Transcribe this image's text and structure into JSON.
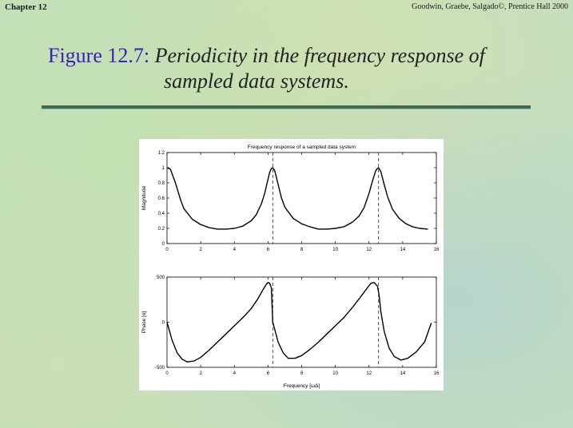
{
  "header": {
    "chapter": "Chapter 12",
    "credit": "Goodwin, Graebe, Salgado©, Prentice Hall 2000"
  },
  "title": {
    "label": "Figure 12.7:",
    "caption_line1": "Periodicity in the frequency response of",
    "caption_line2": "sampled data systems."
  },
  "colors": {
    "title_label": "#3a1fb8",
    "rule": "#3f6b55",
    "curve": "#000000"
  },
  "chart_data": [
    {
      "type": "line",
      "title": "Frequency response of a sampled data system",
      "xlabel": "",
      "ylabel": "Magnitude",
      "xlim": [
        0,
        16
      ],
      "ylim": [
        0,
        1.2
      ],
      "xticks": [
        0,
        2,
        4,
        6,
        8,
        10,
        12,
        14,
        16
      ],
      "yticks": [
        0,
        0.2,
        0.4,
        0.6,
        0.8,
        1,
        1.2
      ],
      "ytick_labels": [
        "0",
        "0.2",
        "0.4",
        "0.6",
        "0.8",
        "1",
        "1.2"
      ],
      "vlines": [
        6.28,
        12.57
      ],
      "series": [
        {
          "x": [
            0,
            0.2,
            0.5,
            0.8,
            1.0,
            1.5,
            2.0,
            2.5,
            3.0,
            3.5,
            4.0,
            4.5,
            5.0,
            5.3,
            5.6,
            5.8,
            6.0,
            6.1,
            6.2,
            6.28,
            6.4,
            6.6,
            6.8,
            7.0,
            7.5,
            8.0,
            8.5,
            9.0,
            9.5,
            10.0,
            10.5,
            11.0,
            11.4,
            11.7,
            12.0,
            12.2,
            12.4,
            12.5,
            12.57,
            12.7,
            12.9,
            13.1,
            13.4,
            13.8,
            14.2,
            14.6,
            15.0,
            15.5
          ],
          "y": [
            1.0,
            0.98,
            0.8,
            0.58,
            0.46,
            0.32,
            0.25,
            0.21,
            0.19,
            0.19,
            0.2,
            0.23,
            0.3,
            0.38,
            0.52,
            0.66,
            0.85,
            0.94,
            0.99,
            1.0,
            0.96,
            0.78,
            0.6,
            0.48,
            0.33,
            0.26,
            0.22,
            0.19,
            0.19,
            0.2,
            0.22,
            0.28,
            0.36,
            0.47,
            0.66,
            0.82,
            0.96,
            0.99,
            1.0,
            0.95,
            0.78,
            0.62,
            0.45,
            0.33,
            0.26,
            0.22,
            0.2,
            0.19
          ]
        }
      ]
    },
    {
      "type": "line",
      "title": "",
      "xlabel": "Frequency [ωΔ]",
      "ylabel": "Phase [o]",
      "xlim": [
        0,
        16
      ],
      "ylim": [
        -500,
        500
      ],
      "xticks": [
        0,
        2,
        4,
        6,
        8,
        10,
        12,
        14,
        16
      ],
      "yticks": [
        -500,
        0,
        500
      ],
      "ytick_labels": [
        "−500",
        "0",
        "500"
      ],
      "vlines": [
        6.28,
        12.57
      ],
      "series": [
        {
          "x": [
            0,
            0.3,
            0.6,
            0.9,
            1.2,
            1.6,
            2.0,
            2.5,
            3.0,
            3.5,
            4.0,
            4.5,
            5.0,
            5.4,
            5.7,
            5.9,
            6.0,
            6.1,
            6.2,
            6.28,
            6.4,
            6.6,
            6.9,
            7.2,
            7.6,
            8.0,
            8.5,
            9.0,
            9.5,
            10.0,
            10.5,
            11.0,
            11.5,
            11.9,
            12.1,
            12.3,
            12.5,
            12.6,
            12.7,
            12.9,
            13.2,
            13.5,
            13.9,
            14.3,
            14.8,
            15.3,
            15.7
          ],
          "y": [
            0,
            -200,
            -340,
            -410,
            -440,
            -430,
            -390,
            -310,
            -220,
            -130,
            -40,
            50,
            150,
            260,
            360,
            420,
            440,
            430,
            380,
            0,
            -80,
            -220,
            -340,
            -400,
            -400,
            -370,
            -300,
            -220,
            -130,
            -40,
            50,
            160,
            280,
            380,
            430,
            440,
            400,
            300,
            120,
            -100,
            -290,
            -380,
            -420,
            -400,
            -330,
            -220,
            -10
          ]
        }
      ]
    }
  ]
}
